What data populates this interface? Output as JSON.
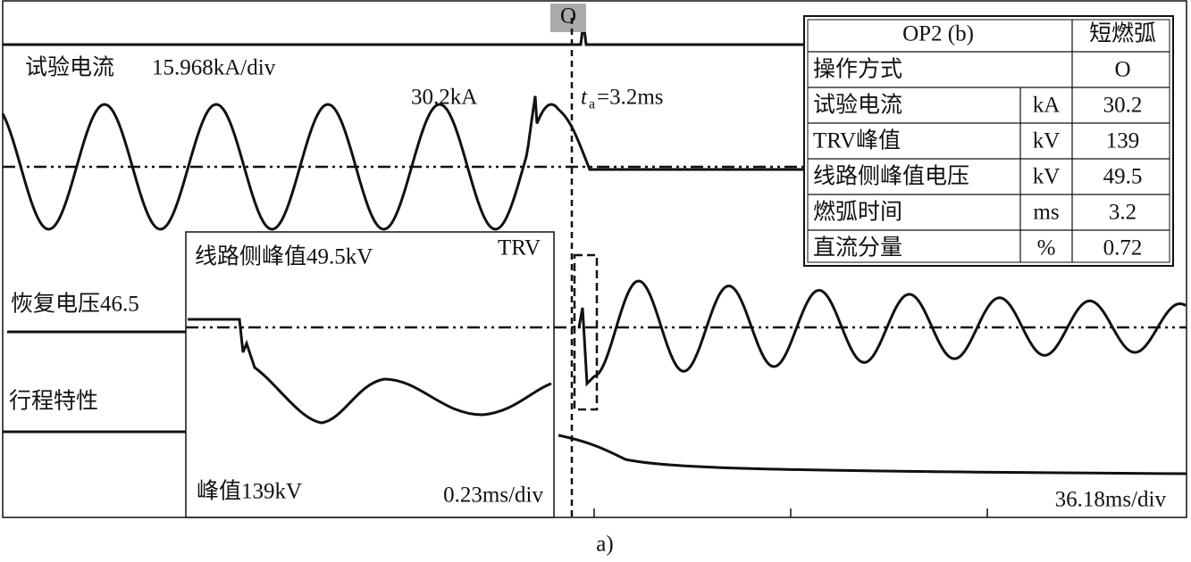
{
  "marker": "O",
  "labels": {
    "current": "试验电流",
    "current_scale": "15.968kA/div",
    "current_peak": "30.2kA",
    "ta_symbol": "t",
    "ta_sub": "a",
    "ta_value": "=3.2ms",
    "recovery": "恢复电压46.5",
    "travel": "行程特性",
    "time_scale": "36.18ms/div"
  },
  "inset": {
    "title": "TRV",
    "line_peak": "线路侧峰值49.5kV",
    "peak": "峰值139kV",
    "scale": "0.23ms/div"
  },
  "table": {
    "header": [
      "OP2 (b)",
      "短燃弧"
    ],
    "rows": [
      {
        "label": "操作方式",
        "value": "O"
      },
      {
        "label": "试验电流",
        "unit": "kA",
        "value": "30.2"
      },
      {
        "label": "TRV峰值",
        "unit": "kV",
        "value": "139"
      },
      {
        "label": "线路侧峰值电压",
        "unit": "kV",
        "value": "49.5"
      },
      {
        "label": "燃弧时间",
        "unit": "ms",
        "value": "3.2"
      },
      {
        "label": "直流分量",
        "unit": "%",
        "value": "0.72"
      }
    ]
  },
  "caption": "a)"
}
